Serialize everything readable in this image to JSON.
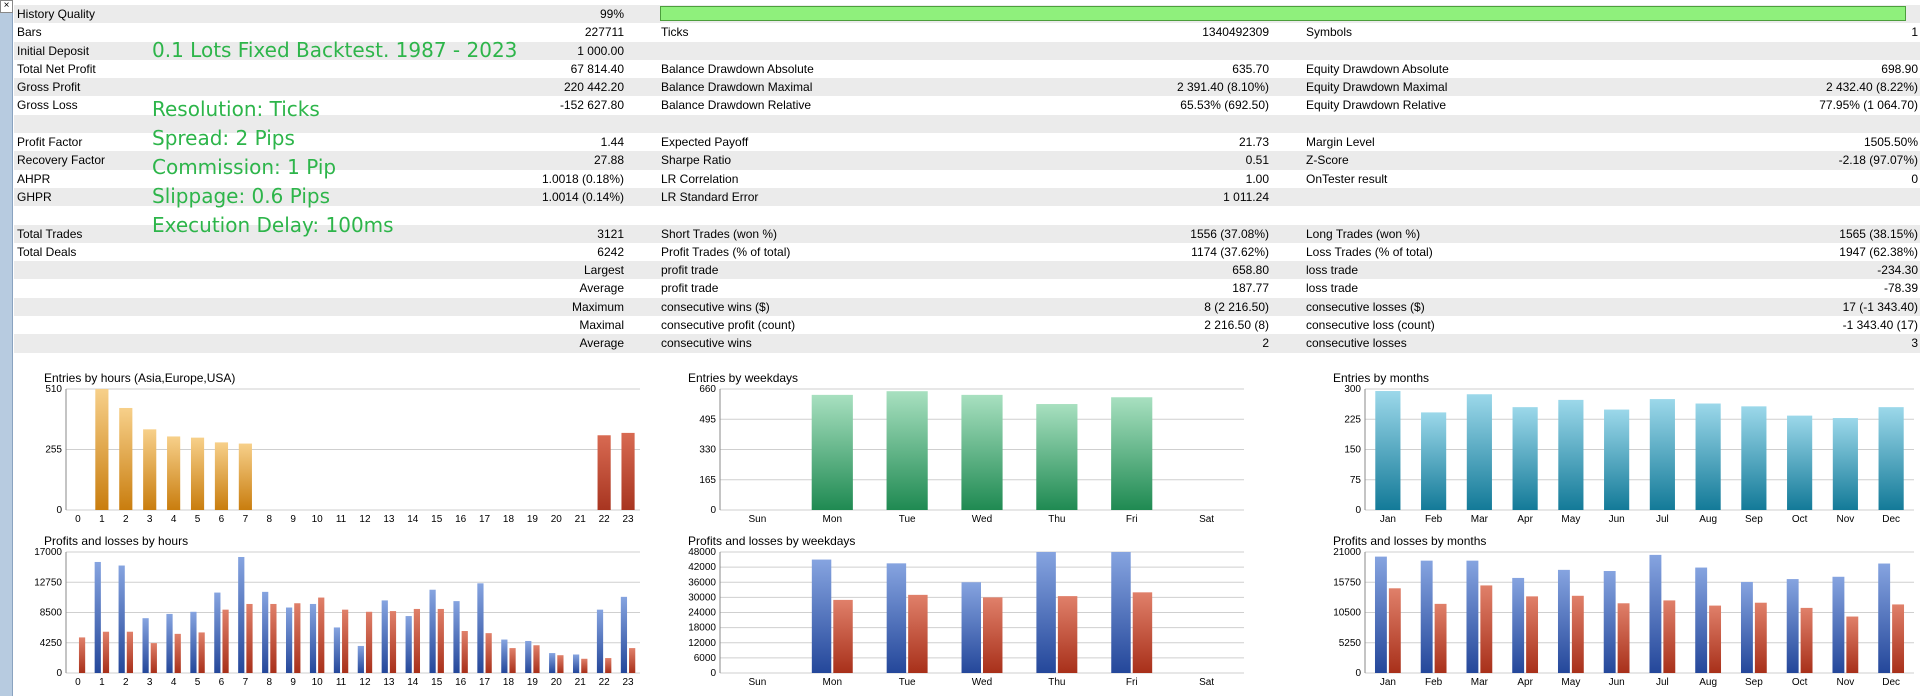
{
  "close_label": "×",
  "report": {
    "rows": [
      {
        "shade": true,
        "l1": "History Quality",
        "v1": "99%",
        "bar": 99
      },
      {
        "shade": false,
        "l1": "Bars",
        "v1": "227711",
        "l2": "Ticks",
        "v2": "1340492309",
        "l3": "Symbols",
        "v3": "1"
      },
      {
        "shade": true,
        "l1": "Initial Deposit",
        "v1": "1 000.00"
      },
      {
        "shade": false,
        "l1": "Total Net Profit",
        "v1": "67 814.40",
        "l2": "Balance Drawdown Absolute",
        "v2": "635.70",
        "l3": "Equity Drawdown Absolute",
        "v3": "698.90"
      },
      {
        "shade": true,
        "l1": "Gross Profit",
        "v1": "220 442.20",
        "l2": "Balance Drawdown Maximal",
        "v2": "2 391.40 (8.10%)",
        "l3": "Equity Drawdown Maximal",
        "v3": "2 432.40 (8.22%)"
      },
      {
        "shade": false,
        "l1": "Gross Loss",
        "v1": "-152 627.80",
        "l2": "Balance Drawdown Relative",
        "v2": "65.53% (692.50)",
        "l3": "Equity Drawdown Relative",
        "v3": "77.95% (1 064.70)"
      },
      {
        "shade": true
      },
      {
        "shade": false,
        "l1": "Profit Factor",
        "v1": "1.44",
        "l2": "Expected Payoff",
        "v2": "21.73",
        "l3": "Margin Level",
        "v3": "1505.50%"
      },
      {
        "shade": true,
        "l1": "Recovery Factor",
        "v1": "27.88",
        "l2": "Sharpe Ratio",
        "v2": "0.51",
        "l3": "Z-Score",
        "v3": "-2.18 (97.07%)"
      },
      {
        "shade": false,
        "l1": "AHPR",
        "v1": "1.0018 (0.18%)",
        "l2": "LR Correlation",
        "v2": "1.00",
        "l3": "OnTester result",
        "v3": "0"
      },
      {
        "shade": true,
        "l1": "GHPR",
        "v1": "1.0014 (0.14%)",
        "l2": "LR Standard Error",
        "v2": "1 011.24"
      },
      {
        "shade": false
      },
      {
        "shade": true,
        "l1": "Total Trades",
        "v1": "3121",
        "l2": "Short Trades (won %)",
        "v2": "1556 (37.08%)",
        "l3": "Long Trades (won %)",
        "v3": "1565 (38.15%)"
      },
      {
        "shade": false,
        "l1": "Total Deals",
        "v1": "6242",
        "l2": "Profit Trades (% of total)",
        "v2": "1174 (37.62%)",
        "l3": "Loss Trades (% of total)",
        "v3": "1947 (62.38%)"
      },
      {
        "shade": true,
        "v1": "Largest",
        "l2": "profit trade",
        "v2": "658.80",
        "l3": "loss trade",
        "v3": "-234.30"
      },
      {
        "shade": false,
        "v1": "Average",
        "l2": "profit trade",
        "v2": "187.77",
        "l3": "loss trade",
        "v3": "-78.39"
      },
      {
        "shade": true,
        "v1": "Maximum",
        "l2": "consecutive wins ($)",
        "v2": "8 (2 216.50)",
        "l3": "consecutive losses ($)",
        "v3": "17 (-1 343.40)"
      },
      {
        "shade": false,
        "v1": "Maximal",
        "l2": "consecutive profit (count)",
        "v2": "2 216.50 (8)",
        "l3": "consecutive loss (count)",
        "v3": "-1 343.40 (17)"
      },
      {
        "shade": true,
        "v1": "Average",
        "l2": "consecutive wins",
        "v2": "2",
        "l3": "consecutive losses",
        "v3": "3"
      },
      {
        "shade": false
      }
    ]
  },
  "overlay": {
    "heading": "0.1 Lots Fixed Backtest. 1987 - 2023",
    "resolution": "Resolution: Ticks",
    "spread": "Spread: 2 Pips",
    "commission": "Commission: 1 Pip",
    "slippage": "Slippage: 0.6 Pips",
    "delay": "Execution Delay: 100ms"
  },
  "colors": {
    "orange": "#d3911c",
    "red_bar": "#c04a35",
    "green": "#3aa06a",
    "teal": "#2a93b3",
    "blue": "#4169b8",
    "red": "#c9472c"
  },
  "chart_data": [
    {
      "type": "bar",
      "title": "Entries by hours (Asia,Europe,USA)",
      "categories": [
        "0",
        "1",
        "2",
        "3",
        "4",
        "5",
        "6",
        "7",
        "8",
        "9",
        "10",
        "11",
        "12",
        "13",
        "14",
        "15",
        "16",
        "17",
        "18",
        "19",
        "20",
        "21",
        "22",
        "23"
      ],
      "yticks": [
        0,
        255,
        510
      ],
      "ylim": [
        0,
        510
      ],
      "series": [
        {
          "values": [
            0,
            510,
            430,
            340,
            310,
            305,
            285,
            280,
            0,
            0,
            0,
            0,
            0,
            0,
            0,
            0,
            0,
            0,
            0,
            0,
            0,
            0,
            315,
            325
          ]
        }
      ]
    },
    {
      "type": "bar",
      "title": "Entries by weekdays",
      "categories": [
        "Sun",
        "Mon",
        "Tue",
        "Wed",
        "Thu",
        "Fri",
        "Sat"
      ],
      "yticks": [
        0,
        165,
        330,
        495,
        660
      ],
      "ylim": [
        0,
        660
      ],
      "series": [
        {
          "values": [
            0,
            628,
            648,
            628,
            578,
            615,
            0
          ]
        }
      ]
    },
    {
      "type": "bar",
      "title": "Entries by months",
      "categories": [
        "Jan",
        "Feb",
        "Mar",
        "Apr",
        "May",
        "Jun",
        "Jul",
        "Aug",
        "Sep",
        "Oct",
        "Nov",
        "Dec"
      ],
      "yticks": [
        0,
        75,
        150,
        225,
        300
      ],
      "ylim": [
        0,
        300
      ],
      "series": [
        {
          "values": [
            295,
            242,
            287,
            255,
            273,
            249,
            275,
            264,
            257,
            234,
            228,
            255
          ]
        }
      ]
    },
    {
      "type": "bar",
      "title": "Profits and losses by hours",
      "categories": [
        "0",
        "1",
        "2",
        "3",
        "4",
        "5",
        "6",
        "7",
        "8",
        "9",
        "10",
        "11",
        "12",
        "13",
        "14",
        "15",
        "16",
        "17",
        "18",
        "19",
        "20",
        "21",
        "22",
        "23"
      ],
      "yticks": [
        0,
        4250,
        8500,
        12750,
        17000
      ],
      "ylim": [
        0,
        17000
      ],
      "series": [
        {
          "values": [
            0,
            15600,
            15100,
            7700,
            8300,
            8600,
            11300,
            16300,
            11400,
            9200,
            9700,
            6400,
            3800,
            10200,
            8000,
            11700,
            10100,
            12600,
            4700,
            4500,
            2800,
            2600,
            8900,
            10700
          ]
        },
        {
          "values": [
            5000,
            5800,
            5800,
            4200,
            5500,
            5700,
            8900,
            9700,
            9700,
            9800,
            10600,
            8900,
            8600,
            8700,
            9000,
            9000,
            5900,
            5600,
            3500,
            3900,
            2500,
            2000,
            2100,
            3500
          ]
        }
      ]
    },
    {
      "type": "bar",
      "title": "Profits and losses by weekdays",
      "categories": [
        "Sun",
        "Mon",
        "Tue",
        "Wed",
        "Thu",
        "Fri",
        "Sat"
      ],
      "yticks": [
        0,
        6000,
        12000,
        18000,
        24000,
        30000,
        36000,
        42000,
        48000
      ],
      "ylim": [
        0,
        48000
      ],
      "series": [
        {
          "values": [
            0,
            45000,
            43500,
            36000,
            48000,
            48000,
            0
          ]
        },
        {
          "values": [
            0,
            29000,
            31000,
            30000,
            30500,
            32000,
            0
          ]
        }
      ]
    },
    {
      "type": "bar",
      "title": "Profits and losses by months",
      "categories": [
        "Jan",
        "Feb",
        "Mar",
        "Apr",
        "May",
        "Jun",
        "Jul",
        "Aug",
        "Sep",
        "Oct",
        "Nov",
        "Dec"
      ],
      "yticks": [
        0,
        5250,
        10500,
        15750,
        21000
      ],
      "ylim": [
        0,
        21000
      ],
      "series": [
        {
          "values": [
            20200,
            19500,
            19500,
            16500,
            17900,
            17700,
            20500,
            18300,
            15800,
            16300,
            16700,
            19000
          ]
        },
        {
          "values": [
            14700,
            12000,
            15200,
            13300,
            13400,
            12100,
            12600,
            11700,
            12200,
            11300,
            9800,
            11900
          ]
        }
      ]
    }
  ]
}
